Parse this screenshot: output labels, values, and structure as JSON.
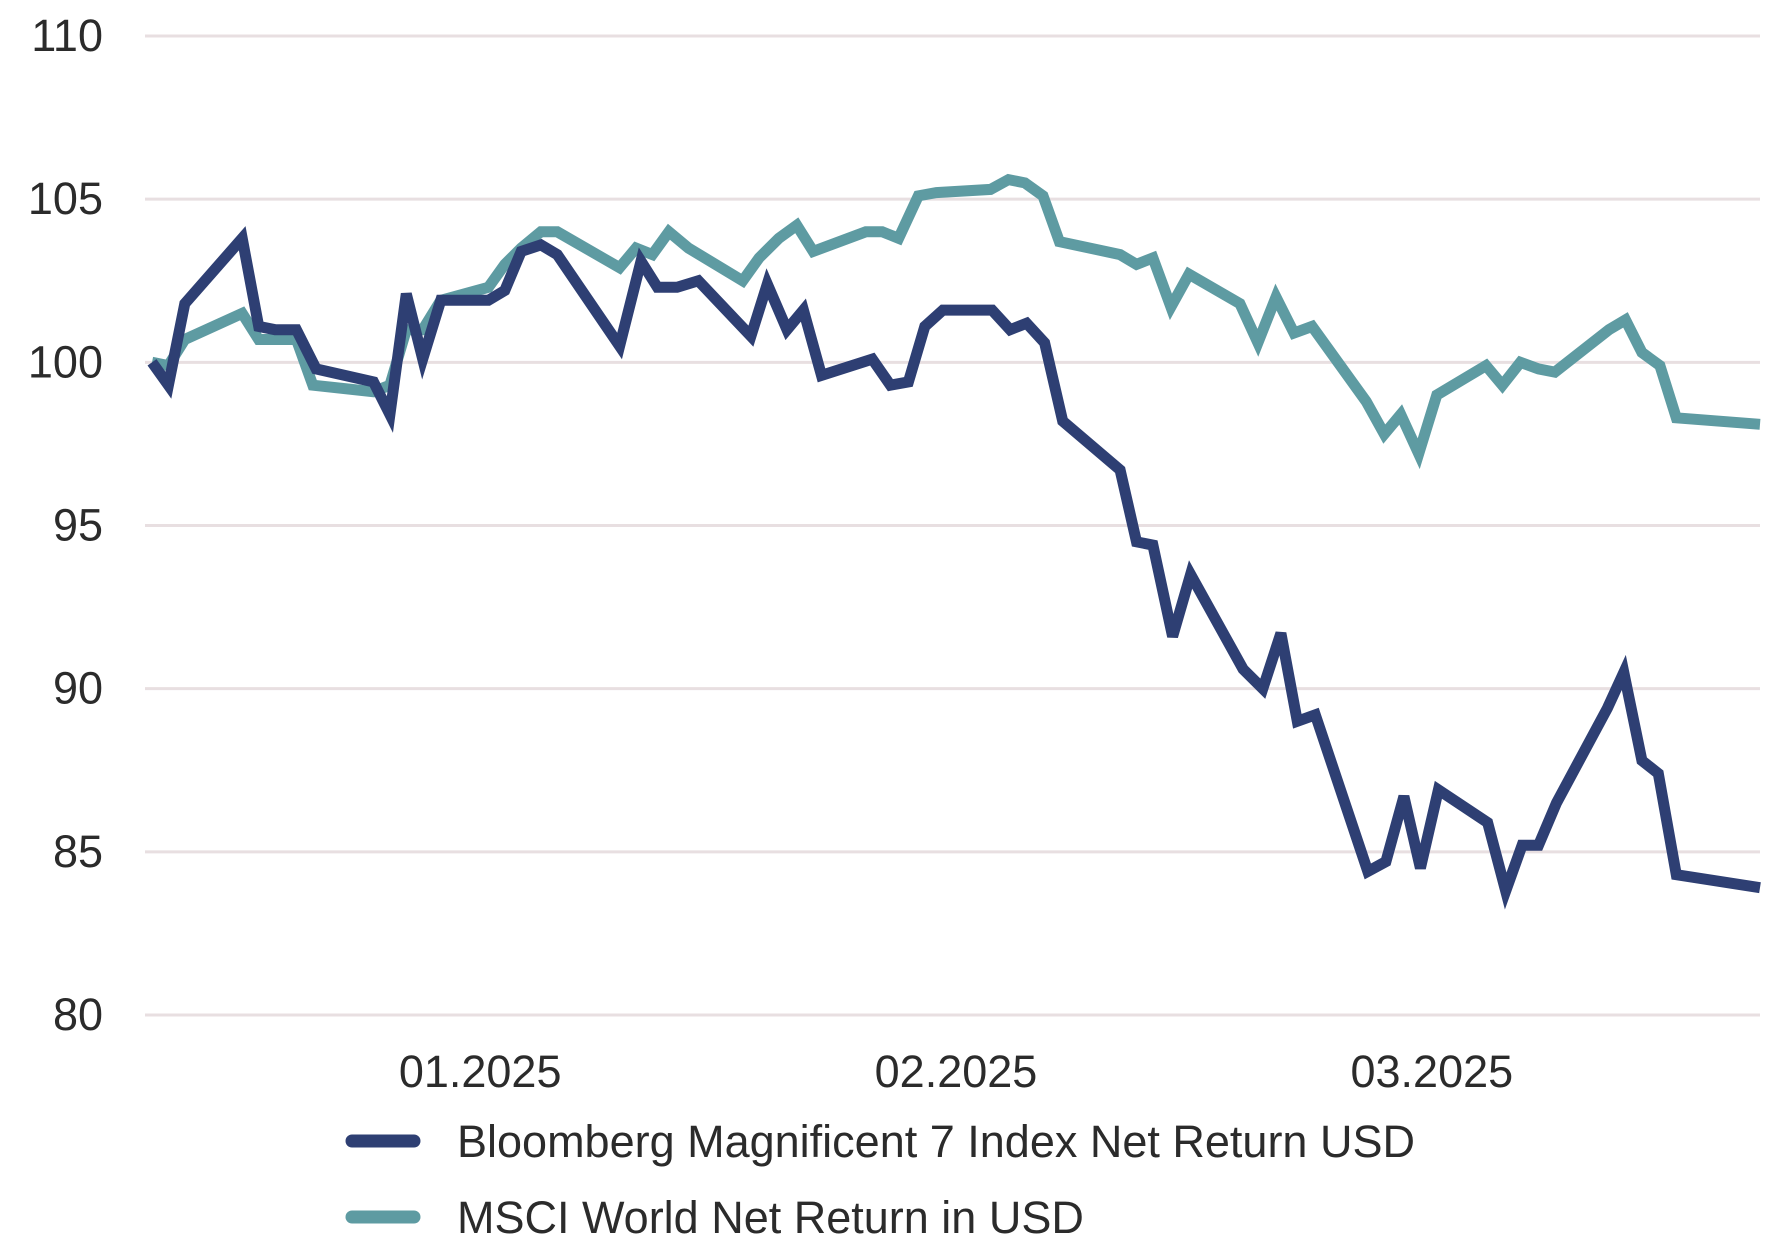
{
  "chart_data": {
    "type": "line",
    "title": "",
    "xlabel": "",
    "ylabel": "",
    "ylim": [
      80,
      110
    ],
    "yticks": [
      80,
      85,
      90,
      95,
      100,
      105,
      110
    ],
    "xlim": [
      0,
      98
    ],
    "xticks": [
      {
        "label": "01.2025",
        "x": 20
      },
      {
        "label": "02.2025",
        "x": 49
      },
      {
        "label": "03.2025",
        "x": 78
      }
    ],
    "grid": true,
    "legend": "bottom",
    "series": [
      {
        "name": "Bloomberg Magnificent 7 Index Net Return USD",
        "color": "#2e3f73",
        "points": [
          [
            0,
            100.0
          ],
          [
            1,
            99.3
          ],
          [
            2,
            101.8
          ],
          [
            5.5,
            103.8
          ],
          [
            6.5,
            101.1
          ],
          [
            7.5,
            101.0
          ],
          [
            8.8,
            101.0
          ],
          [
            10,
            99.8
          ],
          [
            13.5,
            99.4
          ],
          [
            14.5,
            98.4
          ],
          [
            15.5,
            102.1
          ],
          [
            16.5,
            100.1
          ],
          [
            17.6,
            101.9
          ],
          [
            20.5,
            101.9
          ],
          [
            21.5,
            102.2
          ],
          [
            22.5,
            103.4
          ],
          [
            23.7,
            103.6
          ],
          [
            24.7,
            103.3
          ],
          [
            28.5,
            100.5
          ],
          [
            29.8,
            103.1
          ],
          [
            30.8,
            102.3
          ],
          [
            32,
            102.3
          ],
          [
            33.3,
            102.5
          ],
          [
            36.5,
            100.8
          ],
          [
            37.5,
            102.4
          ],
          [
            38.7,
            101.0
          ],
          [
            39.7,
            101.6
          ],
          [
            40.8,
            99.6
          ],
          [
            43.9,
            100.1
          ],
          [
            45,
            99.3
          ],
          [
            46.1,
            99.4
          ],
          [
            47.1,
            101.1
          ],
          [
            48.2,
            101.6
          ],
          [
            51.2,
            101.6
          ],
          [
            52.3,
            101.0
          ],
          [
            53.3,
            101.2
          ],
          [
            54.4,
            100.6
          ],
          [
            55.5,
            98.2
          ],
          [
            59,
            96.7
          ],
          [
            60,
            94.5
          ],
          [
            61,
            94.4
          ],
          [
            62.2,
            91.6
          ],
          [
            63.3,
            93.5
          ],
          [
            66.5,
            90.6
          ],
          [
            67.7,
            90.0
          ],
          [
            68.8,
            91.7
          ],
          [
            69.8,
            89.0
          ],
          [
            70.9,
            89.2
          ],
          [
            74.1,
            84.4
          ],
          [
            75.2,
            84.7
          ],
          [
            76.3,
            86.7
          ],
          [
            77.3,
            84.5
          ],
          [
            78.4,
            86.9
          ],
          [
            81.4,
            85.9
          ],
          [
            82.5,
            83.8
          ],
          [
            83.5,
            85.2
          ],
          [
            84.5,
            85.2
          ],
          [
            85.6,
            86.5
          ],
          [
            88.7,
            89.4
          ],
          [
            89.7,
            90.5
          ],
          [
            90.8,
            87.8
          ],
          [
            91.8,
            87.4
          ],
          [
            92.9,
            84.3
          ],
          [
            98,
            83.9
          ]
        ]
      },
      {
        "name": "MSCI World Net Return in USD",
        "color": "#5e9ba2",
        "points": [
          [
            0,
            100.0
          ],
          [
            1,
            99.9
          ],
          [
            2,
            100.7
          ],
          [
            5.5,
            101.5
          ],
          [
            6.5,
            100.7
          ],
          [
            8.8,
            100.7
          ],
          [
            9.8,
            99.3
          ],
          [
            13.5,
            99.1
          ],
          [
            14.5,
            99.3
          ],
          [
            15.5,
            101.0
          ],
          [
            16.5,
            101.0
          ],
          [
            17.6,
            101.9
          ],
          [
            20.5,
            102.3
          ],
          [
            21.5,
            103.0
          ],
          [
            22.5,
            103.5
          ],
          [
            23.7,
            104.0
          ],
          [
            24.7,
            104.0
          ],
          [
            28.5,
            102.9
          ],
          [
            29.5,
            103.5
          ],
          [
            30.5,
            103.3
          ],
          [
            31.5,
            104.0
          ],
          [
            32.7,
            103.5
          ],
          [
            36,
            102.5
          ],
          [
            37,
            103.2
          ],
          [
            38.2,
            103.8
          ],
          [
            39.3,
            104.2
          ],
          [
            40.3,
            103.4
          ],
          [
            43.5,
            104.0
          ],
          [
            44.5,
            104.0
          ],
          [
            45.5,
            103.8
          ],
          [
            46.7,
            105.1
          ],
          [
            47.8,
            105.2
          ],
          [
            51.1,
            105.3
          ],
          [
            52.2,
            105.6
          ],
          [
            53.2,
            105.5
          ],
          [
            54.3,
            105.1
          ],
          [
            55.3,
            103.7
          ],
          [
            59,
            103.3
          ],
          [
            60,
            103.0
          ],
          [
            61,
            103.2
          ],
          [
            62.1,
            101.7
          ],
          [
            63.2,
            102.7
          ],
          [
            66.3,
            101.8
          ],
          [
            67.4,
            100.6
          ],
          [
            68.5,
            102.0
          ],
          [
            69.6,
            100.9
          ],
          [
            70.7,
            101.1
          ],
          [
            74.0,
            98.8
          ],
          [
            75.1,
            97.8
          ],
          [
            76.1,
            98.4
          ],
          [
            77.2,
            97.2
          ],
          [
            78.3,
            99.0
          ],
          [
            81.3,
            99.9
          ],
          [
            82.3,
            99.3
          ],
          [
            83.4,
            100.0
          ],
          [
            84.5,
            99.8
          ],
          [
            85.5,
            99.7
          ],
          [
            88.8,
            101.0
          ],
          [
            89.8,
            101.3
          ],
          [
            90.8,
            100.3
          ],
          [
            91.9,
            99.9
          ],
          [
            92.9,
            98.3
          ],
          [
            98,
            98.1
          ]
        ]
      }
    ]
  }
}
